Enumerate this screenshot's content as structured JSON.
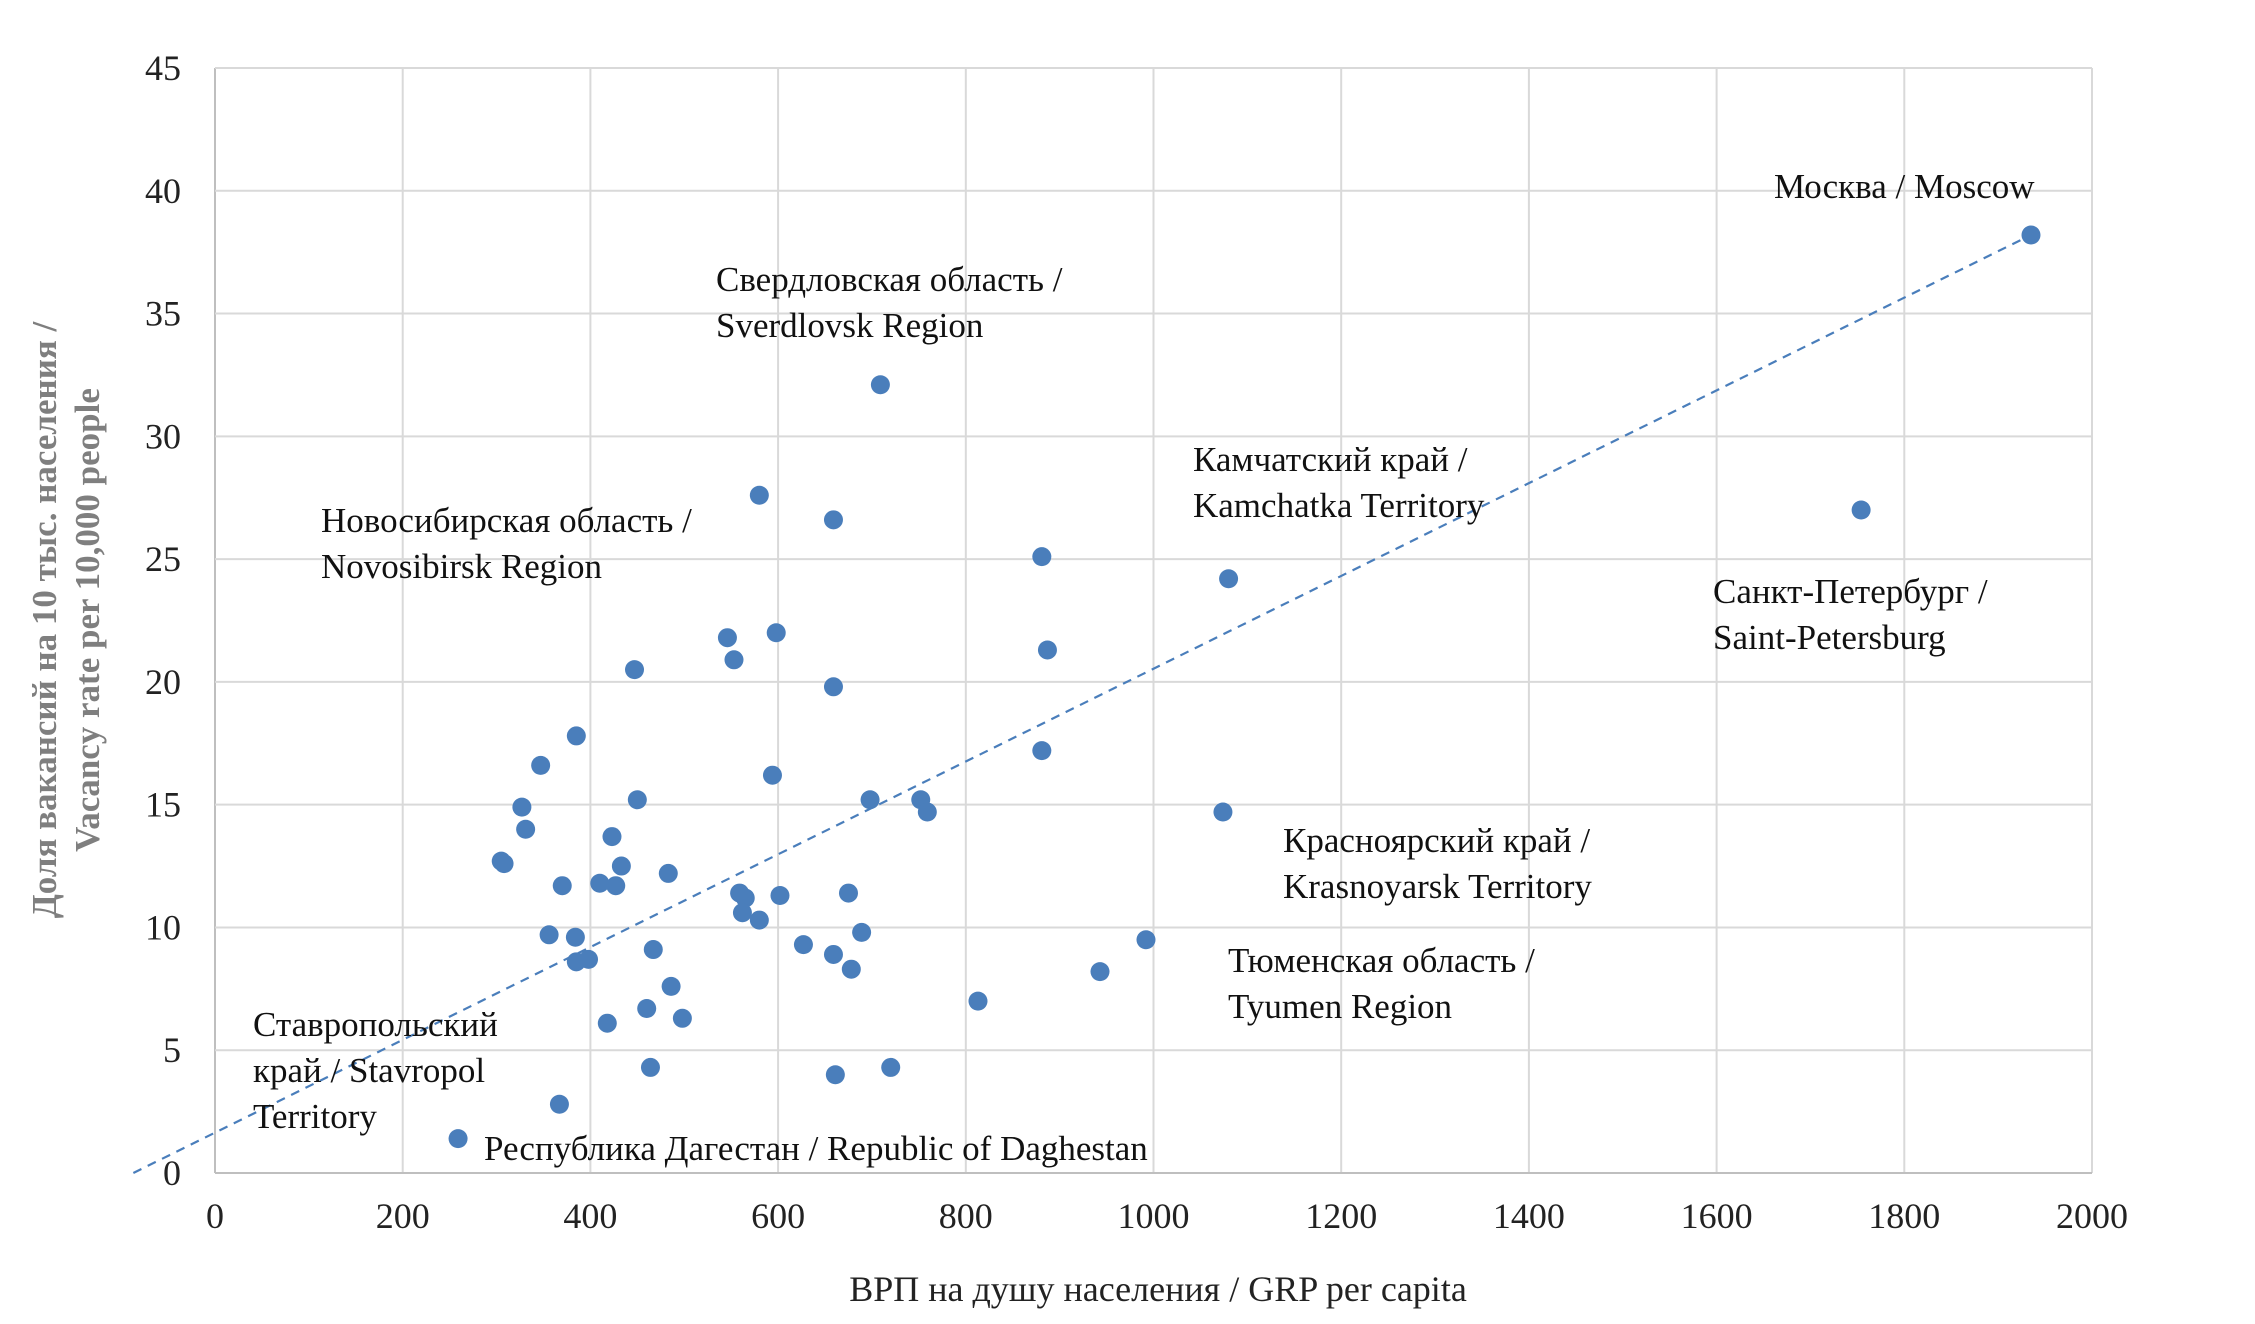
{
  "chart_data": {
    "type": "scatter",
    "xlabel": "ВРП на душу населения / GRP per capita",
    "ylabel": [
      "Доля вакансий на 10 тыс. населения /",
      "Vacancy rate per 10,000 people"
    ],
    "xlim": [
      0,
      2000
    ],
    "ylim": [
      0,
      45
    ],
    "xticks": [
      "0",
      "200",
      "400",
      "600",
      "800",
      "1000",
      "1200",
      "1400",
      "1600",
      "1800",
      "2000"
    ],
    "yticks": [
      "0",
      "5",
      "10",
      "15",
      "20",
      "25",
      "30",
      "35",
      "40",
      "45"
    ],
    "grid": true,
    "color": "#4a7ebb",
    "trendline": {
      "style": "dashed",
      "x": [
        -87,
        1935
      ],
      "y": [
        0,
        38.2
      ]
    },
    "points": [
      [
        1935,
        38.2
      ],
      [
        1754,
        27.0
      ],
      [
        709,
        32.1
      ],
      [
        580,
        27.6
      ],
      [
        659,
        26.6
      ],
      [
        881,
        25.1
      ],
      [
        1080,
        24.2
      ],
      [
        546,
        21.8
      ],
      [
        598,
        22.0
      ],
      [
        553,
        20.9
      ],
      [
        447,
        20.5
      ],
      [
        659,
        19.8
      ],
      [
        887,
        21.3
      ],
      [
        385,
        17.8
      ],
      [
        881,
        17.2
      ],
      [
        347,
        16.6
      ],
      [
        594,
        16.2
      ],
      [
        327,
        14.9
      ],
      [
        450,
        15.2
      ],
      [
        698,
        15.2
      ],
      [
        752,
        15.2
      ],
      [
        759,
        14.7
      ],
      [
        1074,
        14.7
      ],
      [
        331,
        14.0
      ],
      [
        423,
        13.7
      ],
      [
        305,
        12.7
      ],
      [
        308,
        12.6
      ],
      [
        433,
        12.5
      ],
      [
        483,
        12.2
      ],
      [
        370,
        11.7
      ],
      [
        410,
        11.8
      ],
      [
        427,
        11.7
      ],
      [
        559,
        11.4
      ],
      [
        565,
        11.2
      ],
      [
        602,
        11.3
      ],
      [
        675,
        11.4
      ],
      [
        562,
        10.6
      ],
      [
        580,
        10.3
      ],
      [
        356,
        9.7
      ],
      [
        384,
        9.6
      ],
      [
        689,
        9.8
      ],
      [
        992,
        9.5
      ],
      [
        627,
        9.3
      ],
      [
        467,
        9.1
      ],
      [
        659,
        8.9
      ],
      [
        398,
        8.7
      ],
      [
        385,
        8.6
      ],
      [
        678,
        8.3
      ],
      [
        943,
        8.2
      ],
      [
        486,
        7.6
      ],
      [
        813,
        7.0
      ],
      [
        460,
        6.7
      ],
      [
        498,
        6.3
      ],
      [
        418,
        6.1
      ],
      [
        464,
        4.3
      ],
      [
        720,
        4.3
      ],
      [
        661,
        4.0
      ],
      [
        367,
        2.8
      ],
      [
        259,
        1.4
      ]
    ],
    "annotations": [
      {
        "lines": [
          "Москва / Moscow"
        ]
      },
      {
        "lines": [
          "Свердловская область /",
          "Sverdlovsk Region"
        ]
      },
      {
        "lines": [
          "Камчатский край /",
          "Kamchatka Territory"
        ]
      },
      {
        "lines": [
          "Новосибирская область /",
          "Novosibirsk Region"
        ]
      },
      {
        "lines": [
          "Санкт-Петербург /",
          "Saint-Petersburg"
        ]
      },
      {
        "lines": [
          "Красноярский край /",
          "Krasnoyarsk Territory"
        ]
      },
      {
        "lines": [
          "Тюменская область /",
          "Tyumen Region"
        ]
      },
      {
        "lines": [
          "Ставропольский",
          "край / Stavropol",
          "Territory"
        ]
      },
      {
        "lines": [
          "Республика Дагестан / Republic of Daghestan"
        ]
      }
    ]
  }
}
